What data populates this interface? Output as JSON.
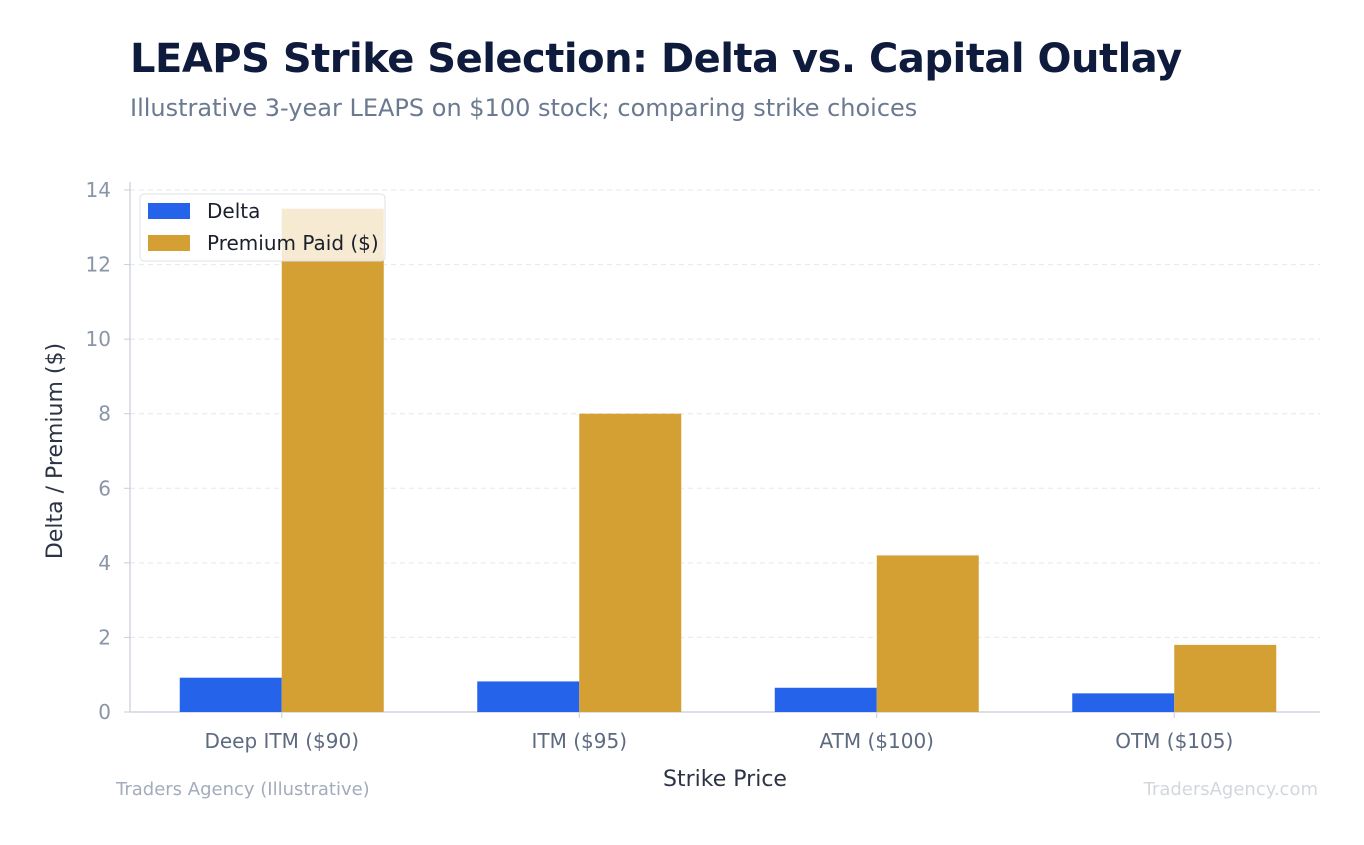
{
  "chart_data": {
    "type": "bar",
    "title": "LEAPS Strike Selection: Delta vs. Capital Outlay",
    "subtitle": "Illustrative 3-year LEAPS on $100 stock; comparing strike choices",
    "xlabel": "Strike Price",
    "ylabel": "Delta / Premium ($)",
    "categories": [
      "Deep ITM ($90)",
      "ITM ($95)",
      "ATM ($100)",
      "OTM ($105)"
    ],
    "series": [
      {
        "name": "Delta",
        "values": [
          0.92,
          0.82,
          0.65,
          0.5
        ],
        "color": "#2563eb"
      },
      {
        "name": "Premium Paid ($)",
        "values": [
          13.5,
          8.0,
          4.2,
          1.8
        ],
        "color": "#d4a033"
      }
    ],
    "ylim": [
      0,
      14
    ],
    "yticks": [
      "0",
      "2",
      "4",
      "6",
      "8",
      "10",
      "12",
      "14"
    ],
    "grid": true,
    "legend_position": "top-left"
  },
  "footer": {
    "source_left": "Traders Agency (Illustrative)",
    "source_right": "TradersAgency.com"
  }
}
